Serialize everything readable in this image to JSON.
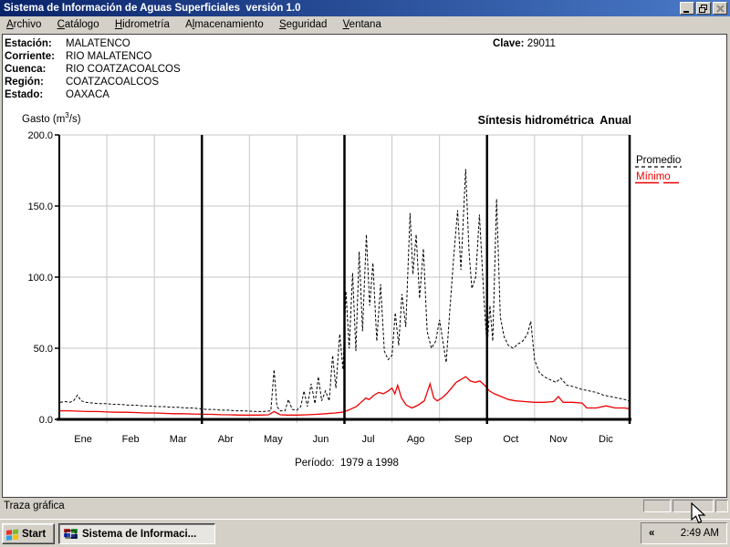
{
  "window": {
    "title": "Sistema de Información de Aguas Superficiales  versión 1.0"
  },
  "menu": {
    "items": [
      {
        "pre": "",
        "accel": "A",
        "post": "rchivo"
      },
      {
        "pre": "",
        "accel": "C",
        "post": "atálogo"
      },
      {
        "pre": "",
        "accel": "H",
        "post": "idrometría"
      },
      {
        "pre": "A",
        "accel": "l",
        "post": "macenamiento"
      },
      {
        "pre": "",
        "accel": "S",
        "post": "eguridad"
      },
      {
        "pre": "",
        "accel": "V",
        "post": "entana"
      }
    ]
  },
  "info": {
    "rows": [
      {
        "label": "Estación:",
        "value": "MALATENCO"
      },
      {
        "label": "Corriente:",
        "value": "RIO MALATENCO"
      },
      {
        "label": "Cuenca:",
        "value": "RIO COATZACOALCOS"
      },
      {
        "label": "Región:",
        "value": "COATZACOALCOS"
      },
      {
        "label": "Estado:",
        "value": "OAXACA"
      }
    ],
    "clave_label": "Clave:",
    "clave_value": "29011"
  },
  "chart_data": {
    "type": "line",
    "title": "Síntesis hidrométrica  Anual",
    "ylabel": "Gasto (m³/s)",
    "ylabel_pre": "Gasto (m",
    "ylabel_sup": "3",
    "ylabel_post": "/s)",
    "period_label": "Período:  1979 a 1998",
    "categories": [
      "Ene",
      "Feb",
      "Mar",
      "Abr",
      "May",
      "Jun",
      "Jul",
      "Ago",
      "Sep",
      "Oct",
      "Nov",
      "Dic"
    ],
    "ylim": [
      0,
      200
    ],
    "yticks": [
      0,
      50,
      100,
      150,
      200
    ],
    "ytick_labels": [
      "0.0",
      "50.0",
      "100.0",
      "150.0",
      "200.0"
    ],
    "x_unit": "months 0-12 (daily mean series)",
    "grid": true,
    "legend_position": "right-outside",
    "quarter_dividers_months": [
      3,
      6,
      9
    ],
    "series": [
      {
        "name": "Promedio",
        "color": "#000000",
        "style": "dashed",
        "points": [
          [
            0.02,
            12
          ],
          [
            0.12,
            12.5
          ],
          [
            0.22,
            12
          ],
          [
            0.3,
            13
          ],
          [
            0.38,
            17
          ],
          [
            0.46,
            13
          ],
          [
            0.56,
            12
          ],
          [
            0.7,
            11.5
          ],
          [
            0.85,
            11
          ],
          [
            1.0,
            11
          ],
          [
            1.15,
            10.5
          ],
          [
            1.3,
            10.5
          ],
          [
            1.45,
            10
          ],
          [
            1.6,
            10
          ],
          [
            1.75,
            9.5
          ],
          [
            1.9,
            9.5
          ],
          [
            2.05,
            9
          ],
          [
            2.2,
            9
          ],
          [
            2.35,
            8.5
          ],
          [
            2.5,
            8.5
          ],
          [
            2.65,
            8
          ],
          [
            2.8,
            8
          ],
          [
            2.95,
            7.5
          ],
          [
            3.1,
            7
          ],
          [
            3.25,
            7
          ],
          [
            3.4,
            6.5
          ],
          [
            3.55,
            6.5
          ],
          [
            3.7,
            6
          ],
          [
            3.85,
            6
          ],
          [
            4.0,
            5.8
          ],
          [
            4.15,
            5.5
          ],
          [
            4.3,
            5.5
          ],
          [
            4.45,
            6
          ],
          [
            4.52,
            35
          ],
          [
            4.58,
            9
          ],
          [
            4.65,
            6
          ],
          [
            4.75,
            6
          ],
          [
            4.82,
            14
          ],
          [
            4.9,
            7
          ],
          [
            5.0,
            6.5
          ],
          [
            5.08,
            9
          ],
          [
            5.15,
            20
          ],
          [
            5.22,
            9
          ],
          [
            5.3,
            25
          ],
          [
            5.38,
            11
          ],
          [
            5.45,
            30
          ],
          [
            5.52,
            13
          ],
          [
            5.6,
            20
          ],
          [
            5.68,
            13
          ],
          [
            5.75,
            45
          ],
          [
            5.82,
            22
          ],
          [
            5.9,
            60
          ],
          [
            5.97,
            35
          ],
          [
            6.03,
            90
          ],
          [
            6.1,
            50
          ],
          [
            6.17,
            103
          ],
          [
            6.24,
            48
          ],
          [
            6.31,
            118
          ],
          [
            6.38,
            62
          ],
          [
            6.46,
            130
          ],
          [
            6.53,
            80
          ],
          [
            6.6,
            110
          ],
          [
            6.68,
            55
          ],
          [
            6.76,
            95
          ],
          [
            6.84,
            48
          ],
          [
            6.92,
            42
          ],
          [
            7.0,
            45
          ],
          [
            7.07,
            75
          ],
          [
            7.14,
            52
          ],
          [
            7.21,
            88
          ],
          [
            7.29,
            65
          ],
          [
            7.38,
            145
          ],
          [
            7.44,
            102
          ],
          [
            7.51,
            130
          ],
          [
            7.58,
            85
          ],
          [
            7.66,
            120
          ],
          [
            7.74,
            62
          ],
          [
            7.83,
            50
          ],
          [
            7.92,
            55
          ],
          [
            8.0,
            70
          ],
          [
            8.07,
            55
          ],
          [
            8.14,
            40
          ],
          [
            8.22,
            78
          ],
          [
            8.3,
            115
          ],
          [
            8.38,
            147
          ],
          [
            8.45,
            105
          ],
          [
            8.55,
            176
          ],
          [
            8.62,
            118
          ],
          [
            8.68,
            92
          ],
          [
            8.76,
            100
          ],
          [
            8.84,
            144
          ],
          [
            8.93,
            88
          ],
          [
            9.0,
            50
          ],
          [
            9.06,
            80
          ],
          [
            9.12,
            55
          ],
          [
            9.2,
            155
          ],
          [
            9.28,
            72
          ],
          [
            9.36,
            58
          ],
          [
            9.45,
            52
          ],
          [
            9.55,
            50
          ],
          [
            9.65,
            53
          ],
          [
            9.75,
            55
          ],
          [
            9.85,
            60
          ],
          [
            9.92,
            69
          ],
          [
            10.0,
            42
          ],
          [
            10.1,
            33
          ],
          [
            10.2,
            30
          ],
          [
            10.32,
            28
          ],
          [
            10.45,
            26
          ],
          [
            10.55,
            29
          ],
          [
            10.68,
            24
          ],
          [
            10.82,
            23
          ],
          [
            11.0,
            21
          ],
          [
            11.15,
            20
          ],
          [
            11.3,
            19
          ],
          [
            11.45,
            17
          ],
          [
            11.6,
            16
          ],
          [
            11.75,
            15
          ],
          [
            11.9,
            14
          ],
          [
            11.98,
            13
          ]
        ]
      },
      {
        "name": "Mínimo",
        "color": "#ee0000",
        "style": "solid",
        "points": [
          [
            0.02,
            6
          ],
          [
            0.2,
            6
          ],
          [
            0.4,
            5.8
          ],
          [
            0.6,
            5.5
          ],
          [
            0.8,
            5.5
          ],
          [
            1.0,
            5.2
          ],
          [
            1.2,
            5
          ],
          [
            1.4,
            5
          ],
          [
            1.6,
            4.8
          ],
          [
            1.8,
            4.5
          ],
          [
            2.0,
            4.5
          ],
          [
            2.2,
            4.2
          ],
          [
            2.4,
            4
          ],
          [
            2.6,
            4
          ],
          [
            2.8,
            3.8
          ],
          [
            3.0,
            3.6
          ],
          [
            3.2,
            3.5
          ],
          [
            3.4,
            3.3
          ],
          [
            3.6,
            3.2
          ],
          [
            3.8,
            3
          ],
          [
            4.0,
            3
          ],
          [
            4.2,
            3
          ],
          [
            4.4,
            3.2
          ],
          [
            4.52,
            5.5
          ],
          [
            4.65,
            3.2
          ],
          [
            4.8,
            3
          ],
          [
            5.0,
            3
          ],
          [
            5.2,
            3.2
          ],
          [
            5.4,
            3.5
          ],
          [
            5.6,
            4
          ],
          [
            5.8,
            4.5
          ],
          [
            5.95,
            5
          ],
          [
            6.05,
            6
          ],
          [
            6.15,
            7.5
          ],
          [
            6.25,
            9
          ],
          [
            6.35,
            12
          ],
          [
            6.45,
            15
          ],
          [
            6.52,
            14
          ],
          [
            6.62,
            17
          ],
          [
            6.72,
            19
          ],
          [
            6.82,
            18
          ],
          [
            6.92,
            20
          ],
          [
            7.0,
            22
          ],
          [
            7.06,
            18
          ],
          [
            7.12,
            24
          ],
          [
            7.2,
            15
          ],
          [
            7.3,
            10
          ],
          [
            7.42,
            8
          ],
          [
            7.55,
            10
          ],
          [
            7.68,
            13
          ],
          [
            7.8,
            25
          ],
          [
            7.88,
            15
          ],
          [
            7.95,
            13
          ],
          [
            8.05,
            15
          ],
          [
            8.15,
            18
          ],
          [
            8.25,
            22
          ],
          [
            8.35,
            26
          ],
          [
            8.45,
            28
          ],
          [
            8.55,
            30
          ],
          [
            8.65,
            27
          ],
          [
            8.75,
            26
          ],
          [
            8.85,
            27
          ],
          [
            8.95,
            24
          ],
          [
            9.05,
            20
          ],
          [
            9.15,
            18
          ],
          [
            9.3,
            16
          ],
          [
            9.45,
            14
          ],
          [
            9.6,
            13
          ],
          [
            9.8,
            12.5
          ],
          [
            10.0,
            12
          ],
          [
            10.2,
            12
          ],
          [
            10.4,
            12.5
          ],
          [
            10.5,
            16
          ],
          [
            10.6,
            12
          ],
          [
            10.8,
            12
          ],
          [
            11.0,
            11.5
          ],
          [
            11.1,
            8
          ],
          [
            11.3,
            8
          ],
          [
            11.5,
            9.5
          ],
          [
            11.7,
            8
          ],
          [
            11.9,
            8
          ],
          [
            11.98,
            7.5
          ]
        ]
      }
    ]
  },
  "statusbar": {
    "text": "Traza gráfica"
  },
  "taskbar": {
    "start_label": "Start",
    "task_label": "Sistema de Informaci...",
    "tray": {
      "chevron": "«",
      "clock": "2:49 AM"
    }
  }
}
